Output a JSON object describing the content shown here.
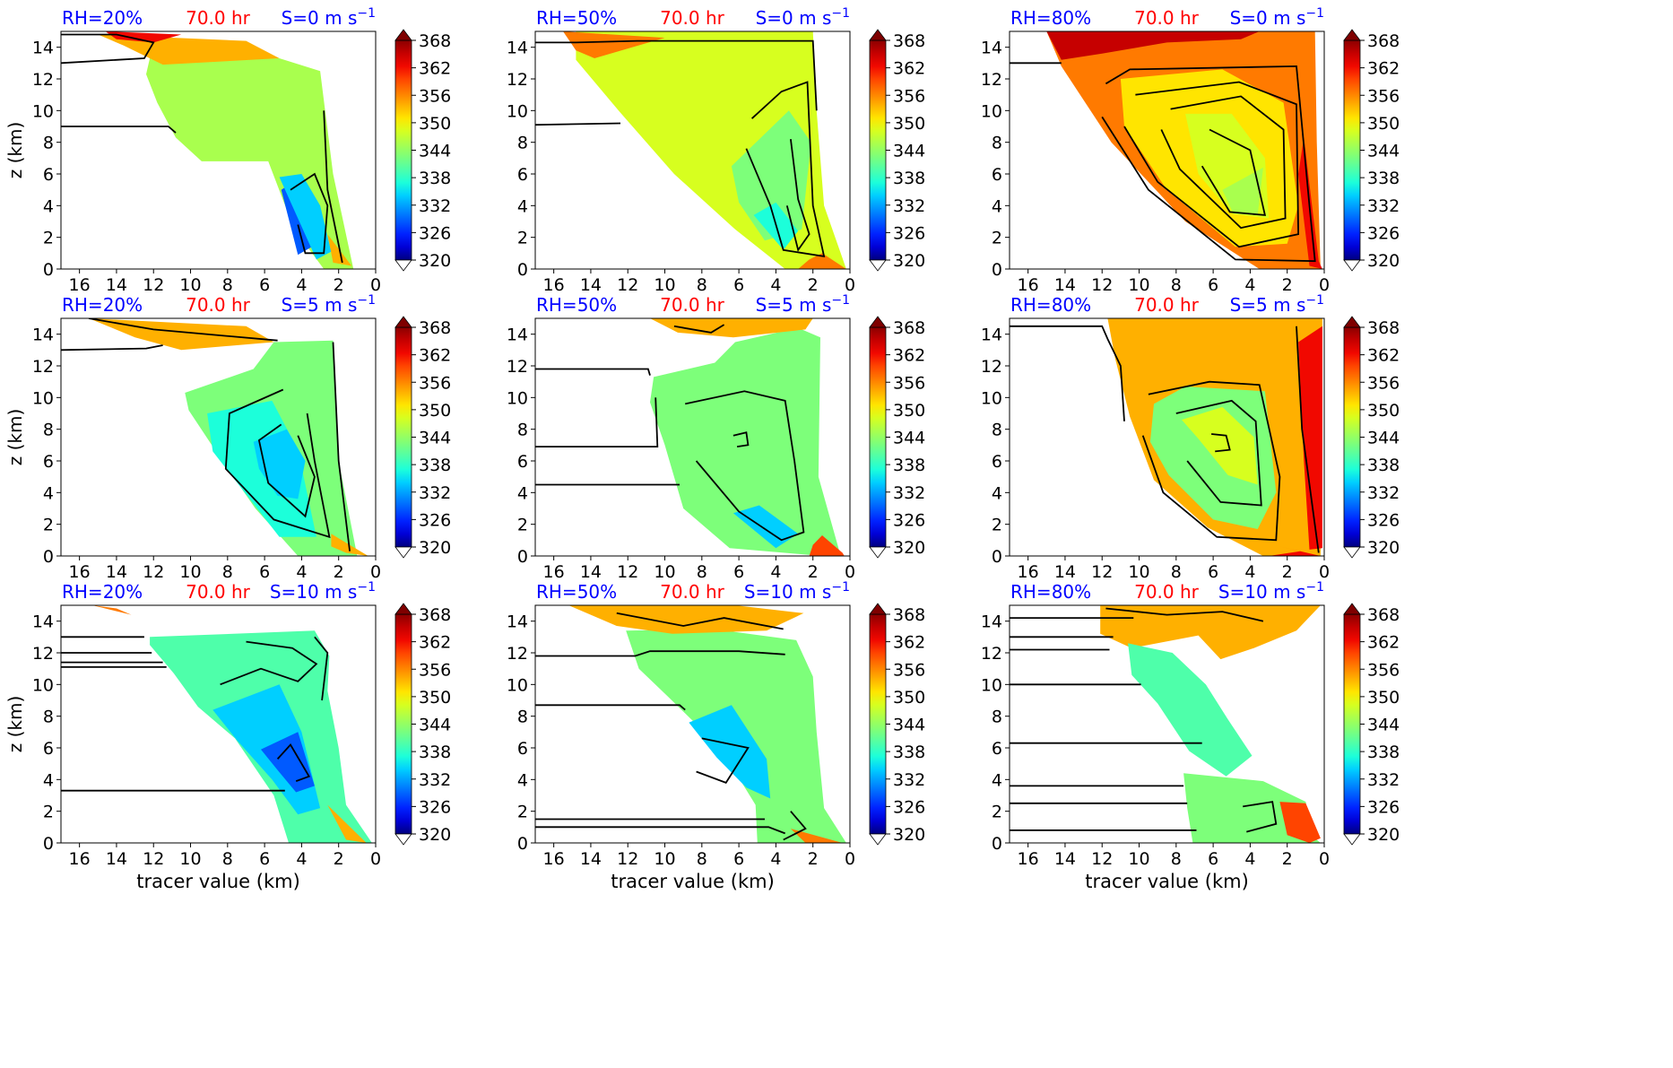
{
  "figure": {
    "colormap": [
      "#00007f",
      "#0000d6",
      "#0021ff",
      "#005aff",
      "#0094ff",
      "#00cfff",
      "#1cffda",
      "#4effaa",
      "#7dff7a",
      "#a9ff4e",
      "#d7ff1f",
      "#ffe500",
      "#ffb000",
      "#ff7a00",
      "#ff4400",
      "#f10800",
      "#c60000",
      "#8b0000"
    ],
    "colorbar_ticks": [
      "368",
      "362",
      "356",
      "350",
      "344",
      "338",
      "332",
      "326",
      "320"
    ],
    "x_tick_labels": [
      "16",
      "14",
      "12",
      "10",
      "8",
      "6",
      "4",
      "2",
      "0"
    ],
    "y_tick_labels": [
      "0",
      "2",
      "4",
      "6",
      "8",
      "10",
      "12",
      "14"
    ],
    "ylabel": "z (km)",
    "xlabel": "tracer value (km)",
    "time_label": "70.0 hr",
    "shear_unit": "m s",
    "shear_exp": "−1"
  },
  "chart_data": [
    {
      "type": "heatmap",
      "rh": "RH=20%",
      "time": "70.0 hr",
      "shear_prefix": "S=0",
      "x_range": [
        17,
        0
      ],
      "y_range": [
        0,
        15
      ],
      "clim": [
        320,
        368
      ]
    },
    {
      "type": "heatmap",
      "rh": "RH=50%",
      "time": "70.0 hr",
      "shear_prefix": "S=0",
      "x_range": [
        17,
        0
      ],
      "y_range": [
        0,
        15
      ],
      "clim": [
        320,
        368
      ]
    },
    {
      "type": "heatmap",
      "rh": "RH=80%",
      "time": "70.0 hr",
      "shear_prefix": "S=0",
      "x_range": [
        17,
        0
      ],
      "y_range": [
        0,
        15
      ],
      "clim": [
        320,
        368
      ]
    },
    {
      "type": "heatmap",
      "rh": "RH=20%",
      "time": "70.0 hr",
      "shear_prefix": "S=5",
      "x_range": [
        17,
        0
      ],
      "y_range": [
        0,
        15
      ],
      "clim": [
        320,
        368
      ]
    },
    {
      "type": "heatmap",
      "rh": "RH=50%",
      "time": "70.0 hr",
      "shear_prefix": "S=5",
      "x_range": [
        17,
        0
      ],
      "y_range": [
        0,
        15
      ],
      "clim": [
        320,
        368
      ]
    },
    {
      "type": "heatmap",
      "rh": "RH=80%",
      "time": "70.0 hr",
      "shear_prefix": "S=5",
      "x_range": [
        17,
        0
      ],
      "y_range": [
        0,
        15
      ],
      "clim": [
        320,
        368
      ]
    },
    {
      "type": "heatmap",
      "rh": "RH=20%",
      "time": "70.0 hr",
      "shear_prefix": "S=10",
      "x_range": [
        17,
        0
      ],
      "y_range": [
        0,
        15
      ],
      "clim": [
        320,
        368
      ]
    },
    {
      "type": "heatmap",
      "rh": "RH=50%",
      "time": "70.0 hr",
      "shear_prefix": "S=10",
      "x_range": [
        17,
        0
      ],
      "y_range": [
        0,
        15
      ],
      "clim": [
        320,
        368
      ]
    },
    {
      "type": "heatmap",
      "rh": "RH=80%",
      "time": "70.0 hr",
      "shear_prefix": "S=10",
      "x_range": [
        17,
        0
      ],
      "y_range": [
        0,
        15
      ],
      "clim": [
        320,
        368
      ]
    }
  ]
}
